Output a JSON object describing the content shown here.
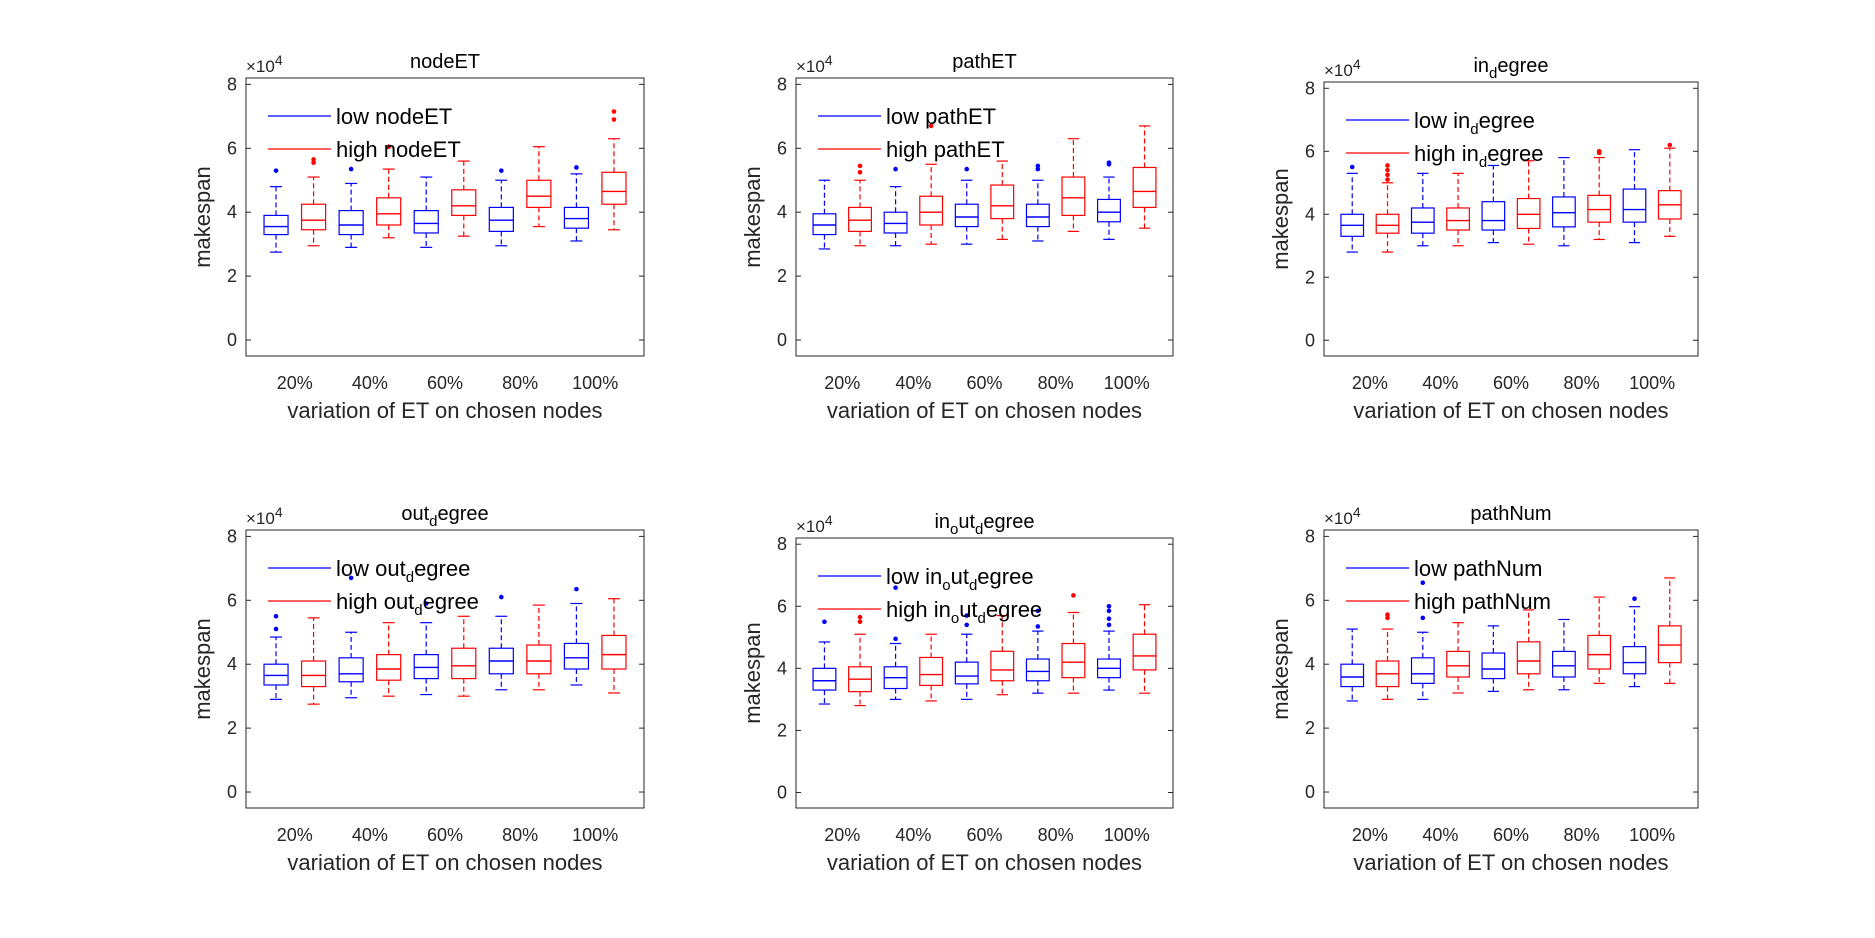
{
  "chart_data": [
    {
      "type": "box",
      "title": "nodeET",
      "xlabel": "variation of ET on chosen nodes",
      "ylabel": "makespan",
      "y_exponent_label": "×10^4",
      "ylim": [
        -0.5,
        8.2
      ],
      "yticks": [
        0,
        2,
        4,
        6,
        8
      ],
      "categories": [
        "20%",
        "40%",
        "60%",
        "80%",
        "100%"
      ],
      "legend_position": "top-left",
      "series": [
        {
          "name": "low nodeET",
          "color": "#0000ff",
          "boxes": [
            {
              "min": 2.75,
              "q1": 3.3,
              "median": 3.55,
              "q3": 3.9,
              "max": 4.8,
              "outliers": [
                5.3
              ]
            },
            {
              "min": 2.9,
              "q1": 3.3,
              "median": 3.6,
              "q3": 4.05,
              "max": 4.9,
              "outliers": [
                5.35
              ]
            },
            {
              "min": 2.9,
              "q1": 3.35,
              "median": 3.65,
              "q3": 4.05,
              "max": 5.1,
              "outliers": []
            },
            {
              "min": 2.95,
              "q1": 3.4,
              "median": 3.75,
              "q3": 4.15,
              "max": 5.0,
              "outliers": [
                5.3
              ]
            },
            {
              "min": 3.1,
              "q1": 3.5,
              "median": 3.8,
              "q3": 4.15,
              "max": 5.2,
              "outliers": [
                5.4
              ]
            }
          ]
        },
        {
          "name": "high nodeET",
          "color": "#ff0000",
          "boxes": [
            {
              "min": 2.95,
              "q1": 3.45,
              "median": 3.75,
              "q3": 4.25,
              "max": 5.1,
              "outliers": [
                5.55,
                5.65
              ]
            },
            {
              "min": 3.2,
              "q1": 3.6,
              "median": 3.95,
              "q3": 4.45,
              "max": 5.35,
              "outliers": [
                6.05
              ]
            },
            {
              "min": 3.25,
              "q1": 3.9,
              "median": 4.2,
              "q3": 4.7,
              "max": 5.6,
              "outliers": []
            },
            {
              "min": 3.55,
              "q1": 4.15,
              "median": 4.5,
              "q3": 5.0,
              "max": 6.05,
              "outliers": []
            },
            {
              "min": 3.45,
              "q1": 4.25,
              "median": 4.65,
              "q3": 5.25,
              "max": 6.3,
              "outliers": [
                6.9,
                7.15
              ]
            }
          ]
        }
      ]
    },
    {
      "type": "box",
      "title": "pathET",
      "xlabel": "variation of ET on chosen nodes",
      "ylabel": "makespan",
      "y_exponent_label": "×10^4",
      "ylim": [
        -0.5,
        8.2
      ],
      "yticks": [
        0,
        2,
        4,
        6,
        8
      ],
      "categories": [
        "20%",
        "40%",
        "60%",
        "80%",
        "100%"
      ],
      "legend_position": "top-left",
      "series": [
        {
          "name": "low pathET",
          "color": "#0000ff",
          "boxes": [
            {
              "min": 2.85,
              "q1": 3.3,
              "median": 3.6,
              "q3": 3.95,
              "max": 5.0,
              "outliers": []
            },
            {
              "min": 2.95,
              "q1": 3.35,
              "median": 3.65,
              "q3": 4.0,
              "max": 4.8,
              "outliers": [
                5.35
              ]
            },
            {
              "min": 3.0,
              "q1": 3.55,
              "median": 3.85,
              "q3": 4.25,
              "max": 5.0,
              "outliers": [
                5.35
              ]
            },
            {
              "min": 3.1,
              "q1": 3.55,
              "median": 3.85,
              "q3": 4.25,
              "max": 5.0,
              "outliers": [
                5.35,
                5.45
              ]
            },
            {
              "min": 3.15,
              "q1": 3.7,
              "median": 4.0,
              "q3": 4.4,
              "max": 5.1,
              "outliers": [
                5.5,
                5.55
              ]
            }
          ]
        },
        {
          "name": "high pathET",
          "color": "#ff0000",
          "boxes": [
            {
              "min": 2.95,
              "q1": 3.4,
              "median": 3.75,
              "q3": 4.15,
              "max": 5.0,
              "outliers": [
                5.25,
                5.45
              ]
            },
            {
              "min": 3.0,
              "q1": 3.6,
              "median": 4.0,
              "q3": 4.5,
              "max": 5.5,
              "outliers": [
                6.7
              ]
            },
            {
              "min": 3.15,
              "q1": 3.8,
              "median": 4.2,
              "q3": 4.85,
              "max": 5.6,
              "outliers": []
            },
            {
              "min": 3.4,
              "q1": 3.9,
              "median": 4.45,
              "q3": 5.1,
              "max": 6.3,
              "outliers": []
            },
            {
              "min": 3.5,
              "q1": 4.15,
              "median": 4.65,
              "q3": 5.4,
              "max": 6.7,
              "outliers": []
            }
          ]
        }
      ]
    },
    {
      "type": "box",
      "title": "in_degree",
      "xlabel": "variation of ET on chosen nodes",
      "ylabel": "makespan",
      "y_exponent_label": "×10^4",
      "ylim": [
        -0.5,
        8.2
      ],
      "yticks": [
        0,
        2,
        4,
        6,
        8
      ],
      "categories": [
        "20%",
        "40%",
        "60%",
        "80%",
        "100%"
      ],
      "legend_position": "top-left",
      "series": [
        {
          "name": "low in_degree",
          "color": "#0000ff",
          "boxes": [
            {
              "min": 2.8,
              "q1": 3.3,
              "median": 3.65,
              "q3": 4.0,
              "max": 5.3,
              "outliers": [
                5.5
              ]
            },
            {
              "min": 3.0,
              "q1": 3.4,
              "median": 3.75,
              "q3": 4.2,
              "max": 5.3,
              "outliers": []
            },
            {
              "min": 3.1,
              "q1": 3.5,
              "median": 3.8,
              "q3": 4.4,
              "max": 5.55,
              "outliers": []
            },
            {
              "min": 3.0,
              "q1": 3.6,
              "median": 4.05,
              "q3": 4.55,
              "max": 5.8,
              "outliers": []
            },
            {
              "min": 3.1,
              "q1": 3.75,
              "median": 4.15,
              "q3": 4.8,
              "max": 6.05,
              "outliers": []
            }
          ]
        },
        {
          "name": "high in_degree",
          "color": "#ff0000",
          "boxes": [
            {
              "min": 2.8,
              "q1": 3.4,
              "median": 3.65,
              "q3": 4.0,
              "max": 5.0,
              "outliers": [
                5.1,
                5.25,
                5.4,
                5.55
              ]
            },
            {
              "min": 3.0,
              "q1": 3.5,
              "median": 3.8,
              "q3": 4.2,
              "max": 5.3,
              "outliers": []
            },
            {
              "min": 3.05,
              "q1": 3.55,
              "median": 4.0,
              "q3": 4.5,
              "max": 5.7,
              "outliers": []
            },
            {
              "min": 3.2,
              "q1": 3.75,
              "median": 4.15,
              "q3": 4.6,
              "max": 5.8,
              "outliers": [
                5.95,
                6.0
              ]
            },
            {
              "min": 3.3,
              "q1": 3.85,
              "median": 4.3,
              "q3": 4.75,
              "max": 6.1,
              "outliers": [
                6.2
              ]
            }
          ]
        }
      ]
    },
    {
      "type": "box",
      "title": "out_degree",
      "xlabel": "variation of ET on chosen nodes",
      "ylabel": "makespan",
      "y_exponent_label": "×10^4",
      "ylim": [
        -0.5,
        8.2
      ],
      "yticks": [
        0,
        2,
        4,
        6,
        8
      ],
      "categories": [
        "20%",
        "40%",
        "60%",
        "80%",
        "100%"
      ],
      "legend_position": "top-left",
      "series": [
        {
          "name": "low out_degree",
          "color": "#0000ff",
          "boxes": [
            {
              "min": 2.9,
              "q1": 3.35,
              "median": 3.65,
              "q3": 4.0,
              "max": 4.85,
              "outliers": [
                5.1,
                5.5
              ]
            },
            {
              "min": 2.95,
              "q1": 3.45,
              "median": 3.7,
              "q3": 4.2,
              "max": 5.0,
              "outliers": [
                6.7
              ]
            },
            {
              "min": 3.05,
              "q1": 3.55,
              "median": 3.9,
              "q3": 4.3,
              "max": 5.3,
              "outliers": [
                5.9
              ]
            },
            {
              "min": 3.2,
              "q1": 3.7,
              "median": 4.1,
              "q3": 4.5,
              "max": 5.5,
              "outliers": [
                6.1
              ]
            },
            {
              "min": 3.35,
              "q1": 3.85,
              "median": 4.2,
              "q3": 4.65,
              "max": 5.9,
              "outliers": [
                6.35
              ]
            }
          ]
        },
        {
          "name": "high out_degree",
          "color": "#ff0000",
          "boxes": [
            {
              "min": 2.75,
              "q1": 3.3,
              "median": 3.65,
              "q3": 4.1,
              "max": 5.45,
              "outliers": []
            },
            {
              "min": 3.0,
              "q1": 3.5,
              "median": 3.85,
              "q3": 4.3,
              "max": 5.3,
              "outliers": []
            },
            {
              "min": 3.0,
              "q1": 3.55,
              "median": 3.95,
              "q3": 4.5,
              "max": 5.5,
              "outliers": []
            },
            {
              "min": 3.2,
              "q1": 3.7,
              "median": 4.1,
              "q3": 4.6,
              "max": 5.85,
              "outliers": []
            },
            {
              "min": 3.1,
              "q1": 3.85,
              "median": 4.3,
              "q3": 4.9,
              "max": 6.05,
              "outliers": []
            }
          ]
        }
      ]
    },
    {
      "type": "box",
      "title": "in_out_degree",
      "xlabel": "variation of ET on chosen nodes",
      "ylabel": "makespan",
      "y_exponent_label": "×10^4",
      "ylim": [
        -0.5,
        8.2
      ],
      "yticks": [
        0,
        2,
        4,
        6,
        8
      ],
      "categories": [
        "20%",
        "40%",
        "60%",
        "80%",
        "100%"
      ],
      "legend_position": "top-left",
      "series": [
        {
          "name": "low in_out_degree",
          "color": "#0000ff",
          "boxes": [
            {
              "min": 2.85,
              "q1": 3.3,
              "median": 3.6,
              "q3": 4.0,
              "max": 4.85,
              "outliers": [
                5.5
              ]
            },
            {
              "min": 3.0,
              "q1": 3.35,
              "median": 3.7,
              "q3": 4.05,
              "max": 4.8,
              "outliers": [
                4.95,
                6.6
              ]
            },
            {
              "min": 3.0,
              "q1": 3.5,
              "median": 3.75,
              "q3": 4.2,
              "max": 5.1,
              "outliers": [
                5.4,
                5.7
              ]
            },
            {
              "min": 3.2,
              "q1": 3.6,
              "median": 3.9,
              "q3": 4.3,
              "max": 5.2,
              "outliers": [
                5.35,
                5.85
              ]
            },
            {
              "min": 3.3,
              "q1": 3.7,
              "median": 4.0,
              "q3": 4.3,
              "max": 5.2,
              "outliers": [
                5.4,
                5.6,
                5.85,
                6.0
              ]
            }
          ]
        },
        {
          "name": "high in_out_degree",
          "color": "#ff0000",
          "boxes": [
            {
              "min": 2.8,
              "q1": 3.25,
              "median": 3.65,
              "q3": 4.05,
              "max": 5.1,
              "outliers": [
                5.5,
                5.65
              ]
            },
            {
              "min": 2.95,
              "q1": 3.45,
              "median": 3.8,
              "q3": 4.35,
              "max": 5.1,
              "outliers": []
            },
            {
              "min": 3.15,
              "q1": 3.6,
              "median": 3.95,
              "q3": 4.55,
              "max": 5.7,
              "outliers": []
            },
            {
              "min": 3.2,
              "q1": 3.7,
              "median": 4.2,
              "q3": 4.8,
              "max": 5.8,
              "outliers": [
                6.35
              ]
            },
            {
              "min": 3.2,
              "q1": 3.95,
              "median": 4.4,
              "q3": 5.1,
              "max": 6.05,
              "outliers": []
            }
          ]
        }
      ]
    },
    {
      "type": "box",
      "title": "pathNum",
      "xlabel": "variation of ET on chosen nodes",
      "ylabel": "makespan",
      "y_exponent_label": "×10^4",
      "ylim": [
        -0.5,
        8.2
      ],
      "yticks": [
        0,
        2,
        4,
        6,
        8
      ],
      "categories": [
        "20%",
        "40%",
        "60%",
        "80%",
        "100%"
      ],
      "legend_position": "top-left",
      "series": [
        {
          "name": "low pathNum",
          "color": "#0000ff",
          "boxes": [
            {
              "min": 2.85,
              "q1": 3.3,
              "median": 3.6,
              "q3": 4.0,
              "max": 5.1,
              "outliers": []
            },
            {
              "min": 2.9,
              "q1": 3.4,
              "median": 3.7,
              "q3": 4.2,
              "max": 5.0,
              "outliers": [
                5.45,
                6.55
              ]
            },
            {
              "min": 3.15,
              "q1": 3.55,
              "median": 3.85,
              "q3": 4.35,
              "max": 5.2,
              "outliers": []
            },
            {
              "min": 3.2,
              "q1": 3.6,
              "median": 3.95,
              "q3": 4.4,
              "max": 5.4,
              "outliers": []
            },
            {
              "min": 3.3,
              "q1": 3.7,
              "median": 4.05,
              "q3": 4.55,
              "max": 5.8,
              "outliers": [
                6.05
              ]
            }
          ]
        },
        {
          "name": "high pathNum",
          "color": "#ff0000",
          "boxes": [
            {
              "min": 2.9,
              "q1": 3.3,
              "median": 3.7,
              "q3": 4.1,
              "max": 5.1,
              "outliers": [
                5.45,
                5.55
              ]
            },
            {
              "min": 3.1,
              "q1": 3.6,
              "median": 3.95,
              "q3": 4.4,
              "max": 5.3,
              "outliers": []
            },
            {
              "min": 3.2,
              "q1": 3.7,
              "median": 4.1,
              "q3": 4.7,
              "max": 5.7,
              "outliers": []
            },
            {
              "min": 3.4,
              "q1": 3.85,
              "median": 4.3,
              "q3": 4.9,
              "max": 6.1,
              "outliers": []
            },
            {
              "min": 3.4,
              "q1": 4.05,
              "median": 4.6,
              "q3": 5.2,
              "max": 6.7,
              "outliers": []
            }
          ]
        }
      ]
    }
  ]
}
